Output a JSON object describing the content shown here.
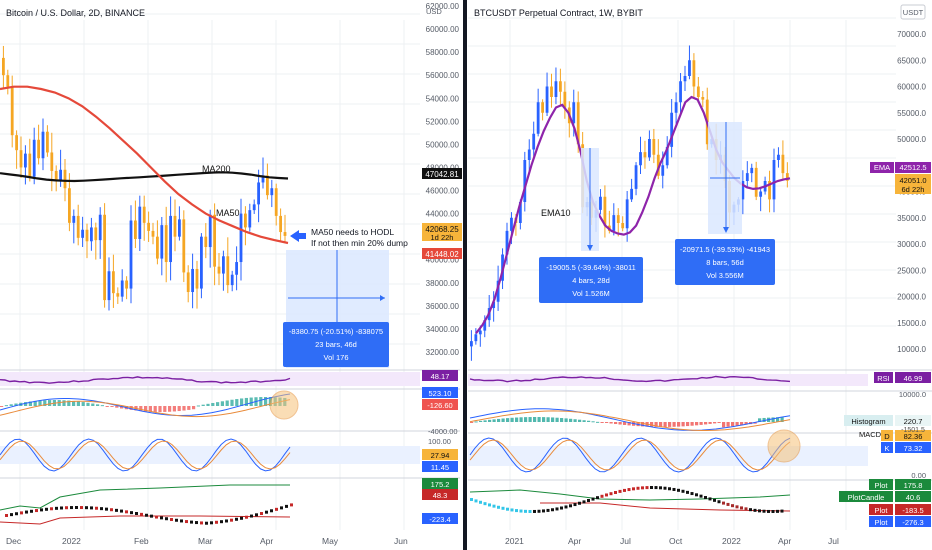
{
  "colors": {
    "up": "#2962ff",
    "down": "#f5a623",
    "ma50": "#e5493a",
    "ma200": "#111111",
    "ema": "#8e24aa",
    "rsi": "#7b1fa2",
    "divider": "#131722",
    "grid": "#eef0f3",
    "axis_text": "#555b66",
    "measure_fill": "#dbe7ff",
    "measure_box": "#2f6df6",
    "macd_hist_up": "#26a69a",
    "macd_hist_down": "#ef5350",
    "stoch_k": "#2962ff",
    "stoch_d": "#e98b3b",
    "osc_green": "#1b8a3c",
    "osc_red": "#c62828"
  },
  "left_panel": {
    "title": "Bitcoin / U.S. Dollar, 2D, BINANCE",
    "currency": "USD",
    "x_ticks": [
      "Dec",
      "2022",
      "Feb",
      "Mar",
      "Apr",
      "May",
      "Jun"
    ],
    "price_ticks": [
      "62000.00",
      "60000.00",
      "58000.00",
      "56000.00",
      "54000.00",
      "52000.00",
      "50000.00",
      "48000.00",
      "46000.00",
      "44000.00",
      "42000.00",
      "40000.00",
      "38000.00",
      "36000.00",
      "34000.00",
      "32000.00"
    ],
    "labels": {
      "ma200": "MA200",
      "ma50": "MA50"
    },
    "note_line1": "MA50 needs to HODL",
    "note_line2": "If not then min 20% dump",
    "measure": {
      "line1": "-8380.75 (-20.51%) -838075",
      "line2": "23 bars, 46d",
      "line3": "Vol 176"
    },
    "price_tags": [
      {
        "value": "47042.81",
        "bg": "#111111",
        "fg": "#ffffff"
      },
      {
        "value": "42068.25",
        "sub": "1d 22h",
        "bg": "#f7b43a",
        "fg": "#111111"
      },
      {
        "value": "41448.02",
        "bg": "#e5493a",
        "fg": "#ffffff"
      }
    ],
    "indicator_tags": {
      "rsi": "48.17",
      "macd_a": "523.10",
      "macd_b": "-126.60",
      "macd_tick": "-4000.00",
      "stoch_tick": "100.00",
      "stoch_a": "27.94",
      "stoch_b": "11.45",
      "osc_a": "175.2",
      "osc_b": "48.3",
      "osc_c": "-223.4"
    }
  },
  "right_panel": {
    "title": "BTCUSDT Perpetual Contract, 1W, BYBIT",
    "currency": "USDT",
    "x_ticks": [
      "2021",
      "Apr",
      "Jul",
      "Oct",
      "2022",
      "Apr",
      "Jul"
    ],
    "price_ticks": [
      "70000.0",
      "65000.0",
      "60000.0",
      "55000.0",
      "50000.0",
      "45000.0",
      "40000.0",
      "35000.0",
      "30000.0",
      "25000.0",
      "20000.0",
      "15000.0",
      "10000.0"
    ],
    "labels": {
      "ema": "EMA10"
    },
    "measure1": {
      "line1": "-19005.5 (-39.64%) -38011",
      "line2": "4 bars, 28d",
      "line3": "Vol 1.526M"
    },
    "measure2": {
      "line1": "-20971.5 (-39.53%) -41943",
      "line2": "8 bars, 56d",
      "line3": "Vol 3.556M"
    },
    "price_tags": {
      "ema_name": "EMA",
      "ema_value": "42512.5",
      "last_value": "42051.0",
      "last_sub": "6d 22h"
    },
    "indicator_tags": {
      "rsi_name": "RSI",
      "rsi_value": "46.99",
      "macd_tick": "10000.0",
      "hist_name": "Histogram",
      "hist_value": "220.7",
      "macd_name": "MACD",
      "macd_value": "-1501.5",
      "d_name": "D",
      "d_value": "82.36",
      "k_name": "K",
      "k_value": "73.32",
      "stoch_tick": "0.00",
      "plot_name": "Plot",
      "plot_value": "175.8",
      "plotcandle_name": "PlotCandle",
      "plotcandle_value": "40.6",
      "plot2_name": "Plot",
      "plot2_value": "-183.5",
      "plot3_name": "Plot",
      "plot3_value": "-276.3"
    }
  },
  "chart_data": [
    {
      "type": "candlestick",
      "title": "Bitcoin / U.S. Dollar, 2D, BINANCE",
      "ylim": [
        31000,
        62500
      ],
      "series": [
        {
          "name": "MA200",
          "values": [
            47500,
            47400,
            47300,
            47180,
            47050,
            46950,
            46880,
            46840,
            46830,
            46850,
            46900,
            46950,
            47000,
            47060,
            47100,
            47150,
            47200,
            47250,
            47300,
            47360,
            47420,
            47470,
            47520,
            47560,
            47580,
            47550,
            47480,
            47380,
            47250,
            47150,
            47090,
            47042
          ]
        },
        {
          "name": "MA50",
          "values": [
            54800,
            55000,
            55000,
            54800,
            54500,
            54000,
            53300,
            52400,
            51400,
            50300,
            49200,
            48000,
            46800,
            45700,
            44800,
            44000,
            43400,
            42900,
            42400,
            42000,
            41700,
            41450
          ]
        }
      ],
      "candles_note": "2-day candles from Dec 2021 to mid-Apr 2022"
    },
    {
      "type": "candlestick",
      "title": "BTCUSDT Perpetual Contract, 1W, BYBIT",
      "ylim": [
        6000,
        73000
      ],
      "series": [
        {
          "name": "EMA10",
          "values": [
            13000,
            14500,
            16500,
            19500,
            23500,
            28000,
            32500,
            37000,
            41000,
            45000,
            48500,
            51500,
            54000,
            56000,
            56500,
            55000,
            52000,
            47500,
            42000,
            38000,
            35500,
            33500,
            32500,
            32000,
            31800,
            32200,
            33500,
            36000,
            39000,
            42500,
            45500,
            48000,
            51000,
            54000,
            57000,
            58000,
            57500,
            55000,
            51500,
            48000,
            45500,
            44000,
            42500,
            41500,
            40800,
            40500,
            40600,
            41000,
            41500,
            42000,
            42300,
            42512
          ]
        }
      ]
    }
  ]
}
